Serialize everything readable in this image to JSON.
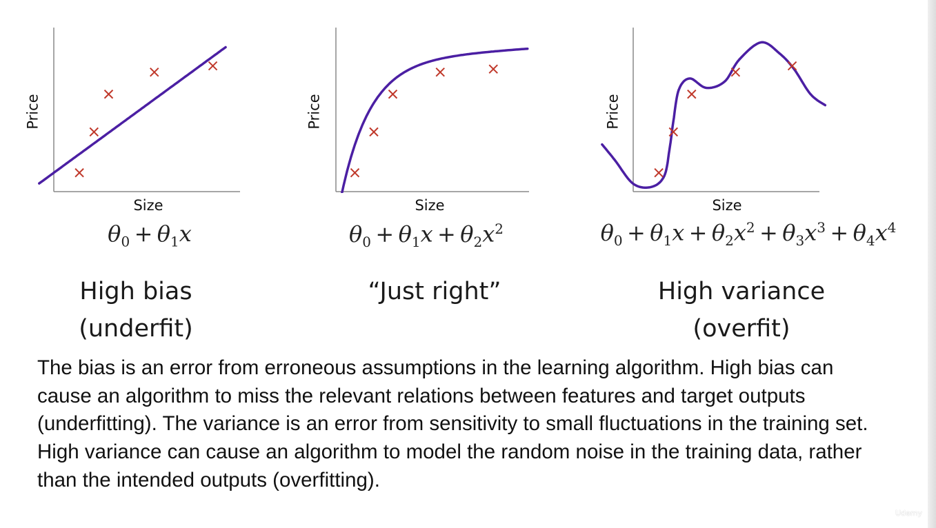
{
  "chart_data": [
    {
      "type": "scatter",
      "title": "",
      "xlabel": "Size",
      "ylabel": "Price",
      "formula_terms": [
        "θ0 + θ1x"
      ],
      "caption": [
        "High bias",
        "(underfit)"
      ],
      "points": [
        [
          0.14,
          0.12
        ],
        [
          0.22,
          0.38
        ],
        [
          0.3,
          0.62
        ],
        [
          0.55,
          0.76
        ],
        [
          0.87,
          0.8
        ]
      ],
      "fit": "linear",
      "grid": false
    },
    {
      "type": "scatter",
      "title": "",
      "xlabel": "Size",
      "ylabel": "Price",
      "formula_terms": [
        "θ0 + θ1x + θ2x2"
      ],
      "caption": [
        "“Just right”"
      ],
      "points": [
        [
          0.1,
          0.12
        ],
        [
          0.2,
          0.38
        ],
        [
          0.3,
          0.62
        ],
        [
          0.55,
          0.76
        ],
        [
          0.83,
          0.78
        ]
      ],
      "fit": "quadratic",
      "grid": false
    },
    {
      "type": "scatter",
      "title": "",
      "xlabel": "Size",
      "ylabel": "Price",
      "formula_terms": [
        "θ0 + θ1x + θ2x2 + θ3x3 + θ4x4"
      ],
      "caption": [
        "High variance",
        "(overfit)"
      ],
      "points": [
        [
          0.14,
          0.12
        ],
        [
          0.22,
          0.38
        ],
        [
          0.32,
          0.62
        ],
        [
          0.56,
          0.76
        ],
        [
          0.87,
          0.8
        ]
      ],
      "fit": "quartic",
      "grid": false
    }
  ],
  "formulas": [
    {
      "parts": [
        "θ",
        "0",
        " + ",
        "θ",
        "1",
        "x"
      ]
    },
    {
      "parts": [
        "θ",
        "0",
        " + ",
        "θ",
        "1",
        "x",
        " + ",
        "θ",
        "2",
        "x",
        "2"
      ]
    },
    {
      "parts": [
        "θ",
        "0",
        " + ",
        "θ",
        "1",
        "x",
        " + ",
        "θ",
        "2",
        "x",
        "2",
        " + ",
        "θ",
        "3",
        "x",
        "3",
        " + ",
        "θ",
        "4",
        "x",
        "4"
      ]
    }
  ],
  "captions": {
    "left_line1": "High bias",
    "left_line2": "(underfit)",
    "middle_line1": "“Just right”",
    "right_line1": "High variance",
    "right_line2": "(overfit)"
  },
  "description": "The bias is an error from erroneous assumptions in the learning algorithm. High bias can cause an algorithm to miss the relevant relations between features and target outputs (underfitting). The variance is an error from sensitivity to small fluctuations in the training set. High variance can cause an algorithm to model the random noise in the training data, rather than the intended outputs (overfitting).",
  "watermark": "Udemy",
  "colors": {
    "curve": "#4b1fa3",
    "marker": "#c0392b",
    "axis": "#888888"
  }
}
